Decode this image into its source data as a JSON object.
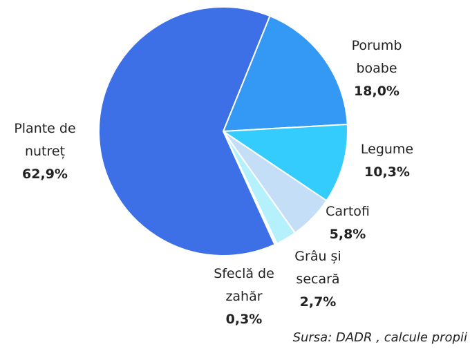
{
  "chart_data": {
    "type": "pie",
    "categories": [
      "Plante de nutreț",
      "Porumb boabe",
      "Legume",
      "Cartofi",
      "Grâu și secară",
      "Sfeclă de zahăr"
    ],
    "values": [
      62.9,
      18.0,
      10.3,
      5.8,
      2.7,
      0.3
    ],
    "value_labels": [
      "62,9%",
      "18,0%",
      "10,3%",
      "5,8%",
      "2,7%",
      "0,3%"
    ],
    "colors": [
      "#3d6fe6",
      "#3399f5",
      "#33ccfc",
      "#c3def6",
      "#b5f0fd",
      "#e9f9ff"
    ],
    "source": "Sursa: DADR , calcule propii"
  }
}
